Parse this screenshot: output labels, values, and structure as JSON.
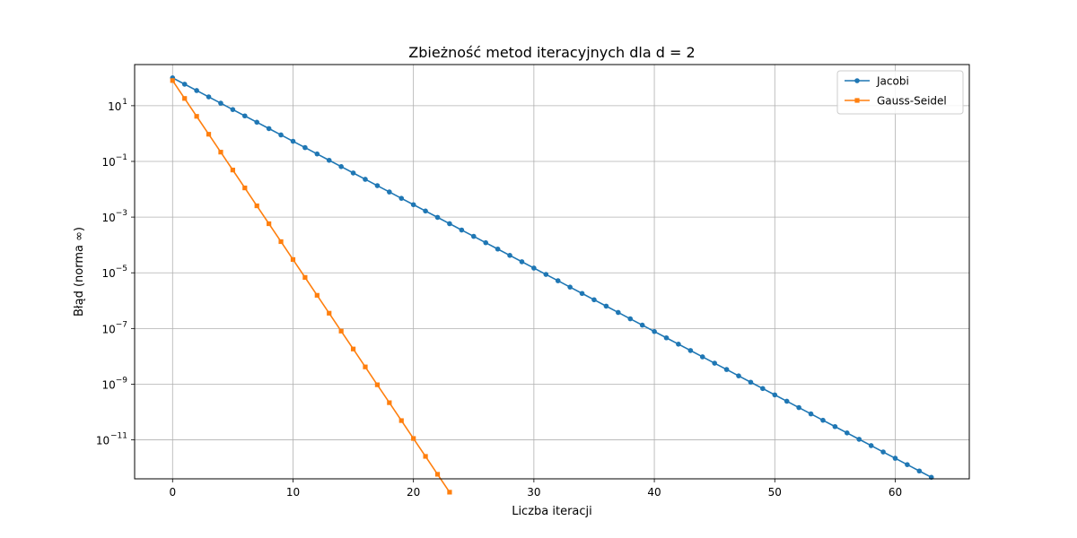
{
  "chart_data": {
    "type": "line",
    "title": "Zbieżność metod iteracyjnych dla d = 2",
    "xlabel": "Liczba iteracji",
    "ylabel": "Błąd (norma ∞)",
    "xlim": [
      -3.15,
      66.15
    ],
    "ylim": [
      4e-13,
      300
    ],
    "yscale": "log",
    "grid": true,
    "legend_position": "top-right",
    "x_ticks": [
      {
        "value": 0,
        "label": "0"
      },
      {
        "value": 10,
        "label": "10"
      },
      {
        "value": 20,
        "label": "20"
      },
      {
        "value": 30,
        "label": "30"
      },
      {
        "value": 40,
        "label": "40"
      },
      {
        "value": 50,
        "label": "50"
      },
      {
        "value": 60,
        "label": "60"
      }
    ],
    "y_ticks": [
      {
        "value": 10,
        "base": "10",
        "exp": "1"
      },
      {
        "value": 0.1,
        "base": "10",
        "exp": "−1"
      },
      {
        "value": 0.001,
        "base": "10",
        "exp": "−3"
      },
      {
        "value": 1e-05,
        "base": "10",
        "exp": "−5"
      },
      {
        "value": 1e-07,
        "base": "10",
        "exp": "−7"
      },
      {
        "value": 1e-09,
        "base": "10",
        "exp": "−9"
      },
      {
        "value": 1e-11,
        "base": "10",
        "exp": "−11"
      }
    ],
    "series": [
      {
        "name": "Jacobi",
        "color": "#1f77b4",
        "marker": "circle",
        "start": 100,
        "ratio": 0.592,
        "n_points": 64
      },
      {
        "name": "Gauss-Seidel",
        "color": "#ff7f0e",
        "marker": "square",
        "start": 80,
        "ratio": 0.2277,
        "n_points": 24
      }
    ]
  }
}
